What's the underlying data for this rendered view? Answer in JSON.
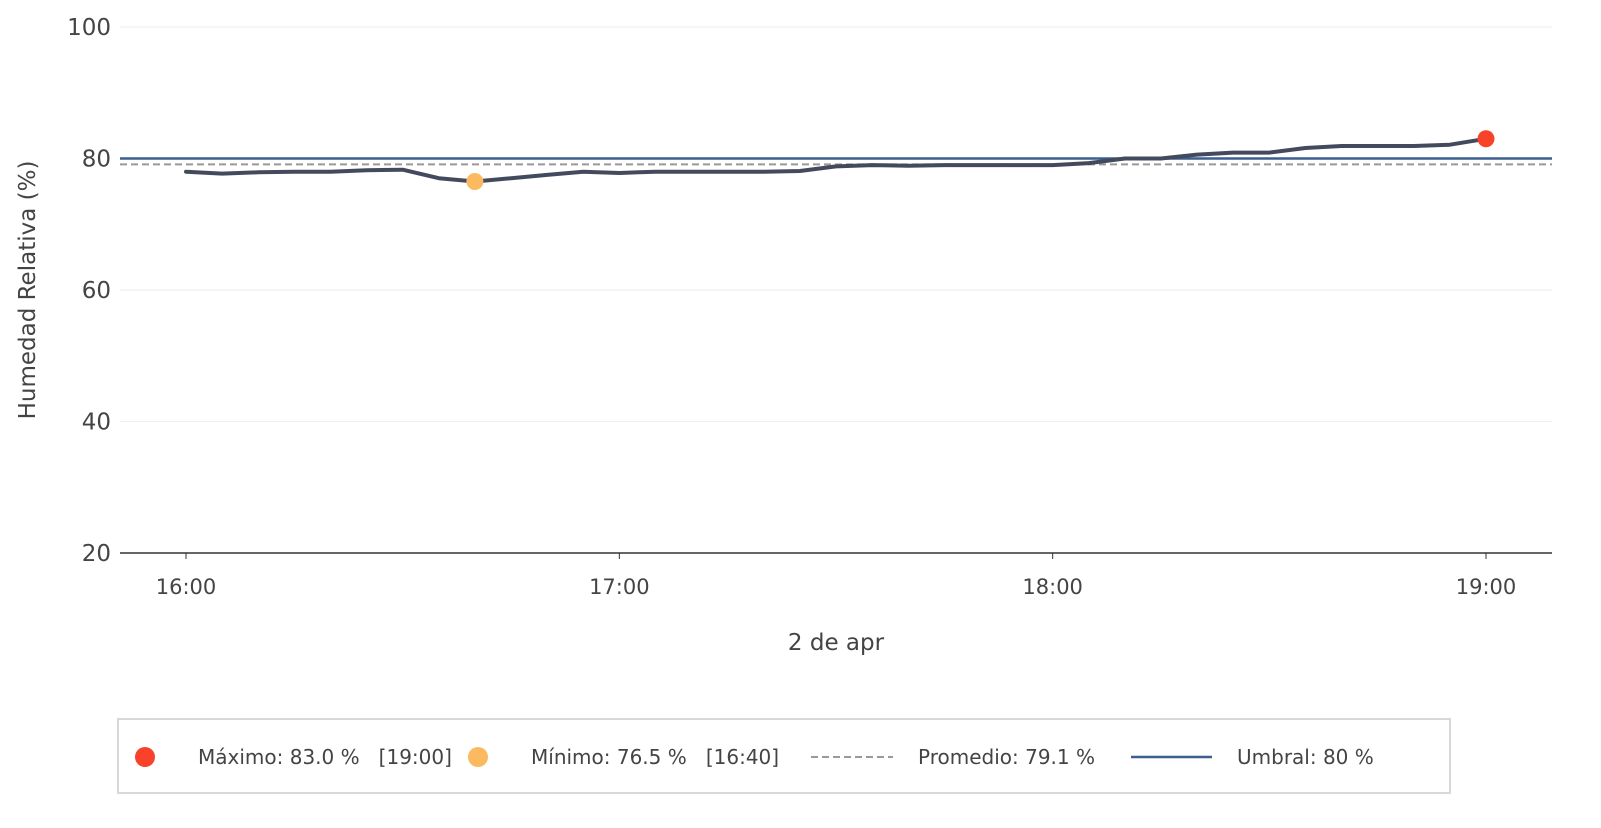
{
  "chart_data": {
    "type": "line",
    "xlabel": "2 de apr",
    "ylabel": "Humedad Relativa (%)",
    "ylim": [
      20,
      100
    ],
    "yticks": [
      20,
      40,
      60,
      80,
      100
    ],
    "xticks": [
      "16:00",
      "17:00",
      "18:00",
      "19:00"
    ],
    "grid": true,
    "legend_position": "bottom",
    "colors": {
      "series": "#444a5e",
      "max": "#f8432a",
      "min": "#fbba60",
      "average": "#999999",
      "threshold": "#3d5f8f",
      "grid": "#eeeeee",
      "axis": "#333333"
    },
    "series": [
      {
        "x": [
          "16:00",
          "16:05",
          "16:10",
          "16:15",
          "16:20",
          "16:25",
          "16:30",
          "16:35",
          "16:40",
          "16:45",
          "16:50",
          "16:55",
          "17:00",
          "17:05",
          "17:10",
          "17:15",
          "17:20",
          "17:25",
          "17:30",
          "17:35",
          "17:40",
          "17:45",
          "17:50",
          "17:55",
          "18:00",
          "18:05",
          "18:10",
          "18:15",
          "18:20",
          "18:25",
          "18:30",
          "18:35",
          "18:40",
          "18:45",
          "18:50",
          "18:55",
          "19:00"
        ],
        "values": [
          78.0,
          77.7,
          77.9,
          78.0,
          78.0,
          78.2,
          78.3,
          77.0,
          76.5,
          77.0,
          77.5,
          78.0,
          77.8,
          78.0,
          78.0,
          78.0,
          78.0,
          78.1,
          78.8,
          79.0,
          78.9,
          79.0,
          79.0,
          79.0,
          79.0,
          79.3,
          80.0,
          80.0,
          80.6,
          80.9,
          80.9,
          81.6,
          81.9,
          81.9,
          81.9,
          82.1,
          83.0
        ]
      }
    ],
    "max_point": {
      "time": "19:00",
      "value": 83.0
    },
    "min_point": {
      "time": "16:40",
      "value": 76.5
    },
    "average": 79.1,
    "threshold": 80,
    "legend": [
      {
        "marker": "max-dot",
        "label": "Máximo: 83.0 %   [19:00]"
      },
      {
        "marker": "min-dot",
        "label": "Mínimo: 76.5 %   [16:40]"
      },
      {
        "marker": "dashed-line",
        "label": "Promedio: 79.1 %"
      },
      {
        "marker": "solid-line",
        "label": "Umbral: 80 %"
      }
    ]
  }
}
